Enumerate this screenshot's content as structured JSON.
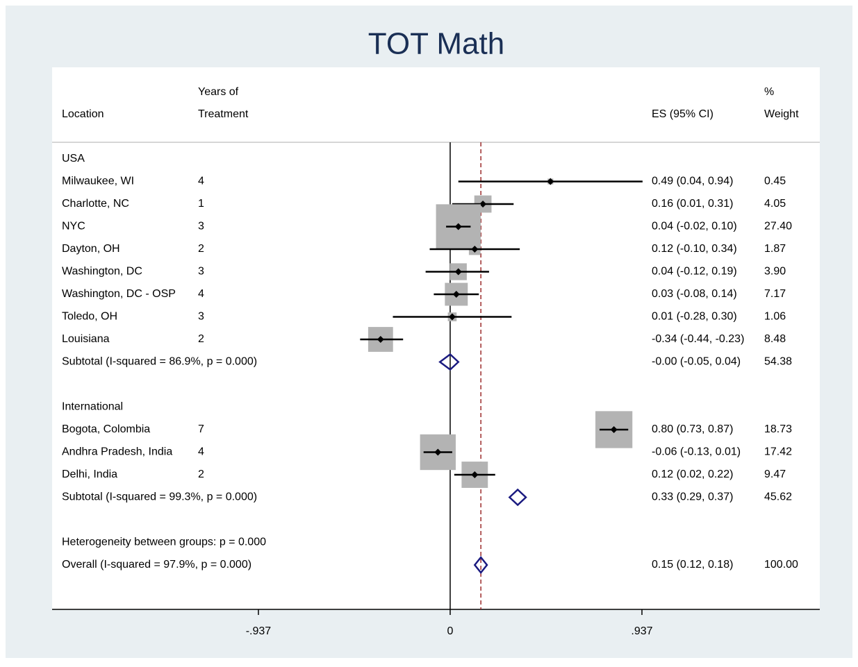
{
  "chart_data": {
    "type": "forest",
    "title": "TOT Math",
    "headers": {
      "location": "Location",
      "years": [
        "Years of",
        "Treatment"
      ],
      "es": "ES (95% CI)",
      "weight": [
        "%",
        "Weight"
      ]
    },
    "groups": [
      {
        "name": "USA",
        "studies": [
          {
            "location": "Milwaukee, WI",
            "years": 4,
            "es": 0.49,
            "lo": 0.04,
            "hi": 0.94,
            "es_ci": "0.49 (0.04, 0.94)",
            "weight": 0.45
          },
          {
            "location": "Charlotte, NC",
            "years": 1,
            "es": 0.16,
            "lo": 0.01,
            "hi": 0.31,
            "es_ci": "0.16 (0.01, 0.31)",
            "weight": 4.05
          },
          {
            "location": "NYC",
            "years": 3,
            "es": 0.04,
            "lo": -0.02,
            "hi": 0.1,
            "es_ci": "0.04 (-0.02, 0.10)",
            "weight": 27.4,
            "weight_label": "27.40"
          },
          {
            "location": "Dayton, OH",
            "years": 2,
            "es": 0.12,
            "lo": -0.1,
            "hi": 0.34,
            "es_ci": "0.12 (-0.10, 0.34)",
            "weight": 1.87
          },
          {
            "location": "Washington, DC",
            "years": 3,
            "es": 0.04,
            "lo": -0.12,
            "hi": 0.19,
            "es_ci": "0.04 (-0.12, 0.19)",
            "weight": 3.9,
            "weight_label": "3.90"
          },
          {
            "location": "Washington, DC - OSP",
            "years": 4,
            "es": 0.03,
            "lo": -0.08,
            "hi": 0.14,
            "es_ci": "0.03 (-0.08, 0.14)",
            "weight": 7.17
          },
          {
            "location": "Toledo, OH",
            "years": 3,
            "es": 0.01,
            "lo": -0.28,
            "hi": 0.3,
            "es_ci": "0.01 (-0.28, 0.30)",
            "weight": 1.06
          },
          {
            "location": "Louisiana",
            "years": 2,
            "es": -0.34,
            "lo": -0.44,
            "hi": -0.23,
            "es_ci": "-0.34 (-0.44, -0.23)",
            "weight": 8.48
          }
        ],
        "subtotal": {
          "label": "Subtotal  (I-squared = 86.9%, p = 0.000)",
          "es": 0,
          "lo": -0.05,
          "hi": 0.04,
          "es_ci": "-0.00 (-0.05, 0.04)",
          "weight": 54.38
        }
      },
      {
        "name": "International",
        "studies": [
          {
            "location": "Bogota, Colombia",
            "years": 7,
            "es": 0.8,
            "lo": 0.73,
            "hi": 0.87,
            "es_ci": "0.80 (0.73, 0.87)",
            "weight": 18.73
          },
          {
            "location": "Andhra Pradesh, India",
            "years": 4,
            "es": -0.06,
            "lo": -0.13,
            "hi": 0.01,
            "es_ci": "-0.06 (-0.13, 0.01)",
            "weight": 17.42
          },
          {
            "location": "Delhi, India",
            "years": 2,
            "es": 0.12,
            "lo": 0.02,
            "hi": 0.22,
            "es_ci": "0.12 (0.02, 0.22)",
            "weight": 9.47
          }
        ],
        "subtotal": {
          "label": "Subtotal  (I-squared = 99.3%, p = 0.000)",
          "es": 0.33,
          "lo": 0.29,
          "hi": 0.37,
          "es_ci": "0.33 (0.29, 0.37)",
          "weight": 45.62
        }
      }
    ],
    "heterogeneity": "Heterogeneity between groups: p = 0.000",
    "overall": {
      "label": "Overall  (I-squared = 97.9%, p = 0.000)",
      "es": 0.15,
      "lo": 0.12,
      "hi": 0.18,
      "es_ci": "0.15 (0.12, 0.18)",
      "weight": 100,
      "weight_label": "100.00"
    },
    "xlim": [
      -1.945,
      1.806
    ],
    "xticks": [
      {
        "value": -0.937,
        "label": "-.937"
      },
      0,
      {
        "value": 0.937,
        "label": ".937"
      }
    ],
    "box_color": "#b3b3b3",
    "diamond_color": "#1a1a80",
    "overall_line_color": "#9b2a2a",
    "title_color": "#1a2f55"
  }
}
